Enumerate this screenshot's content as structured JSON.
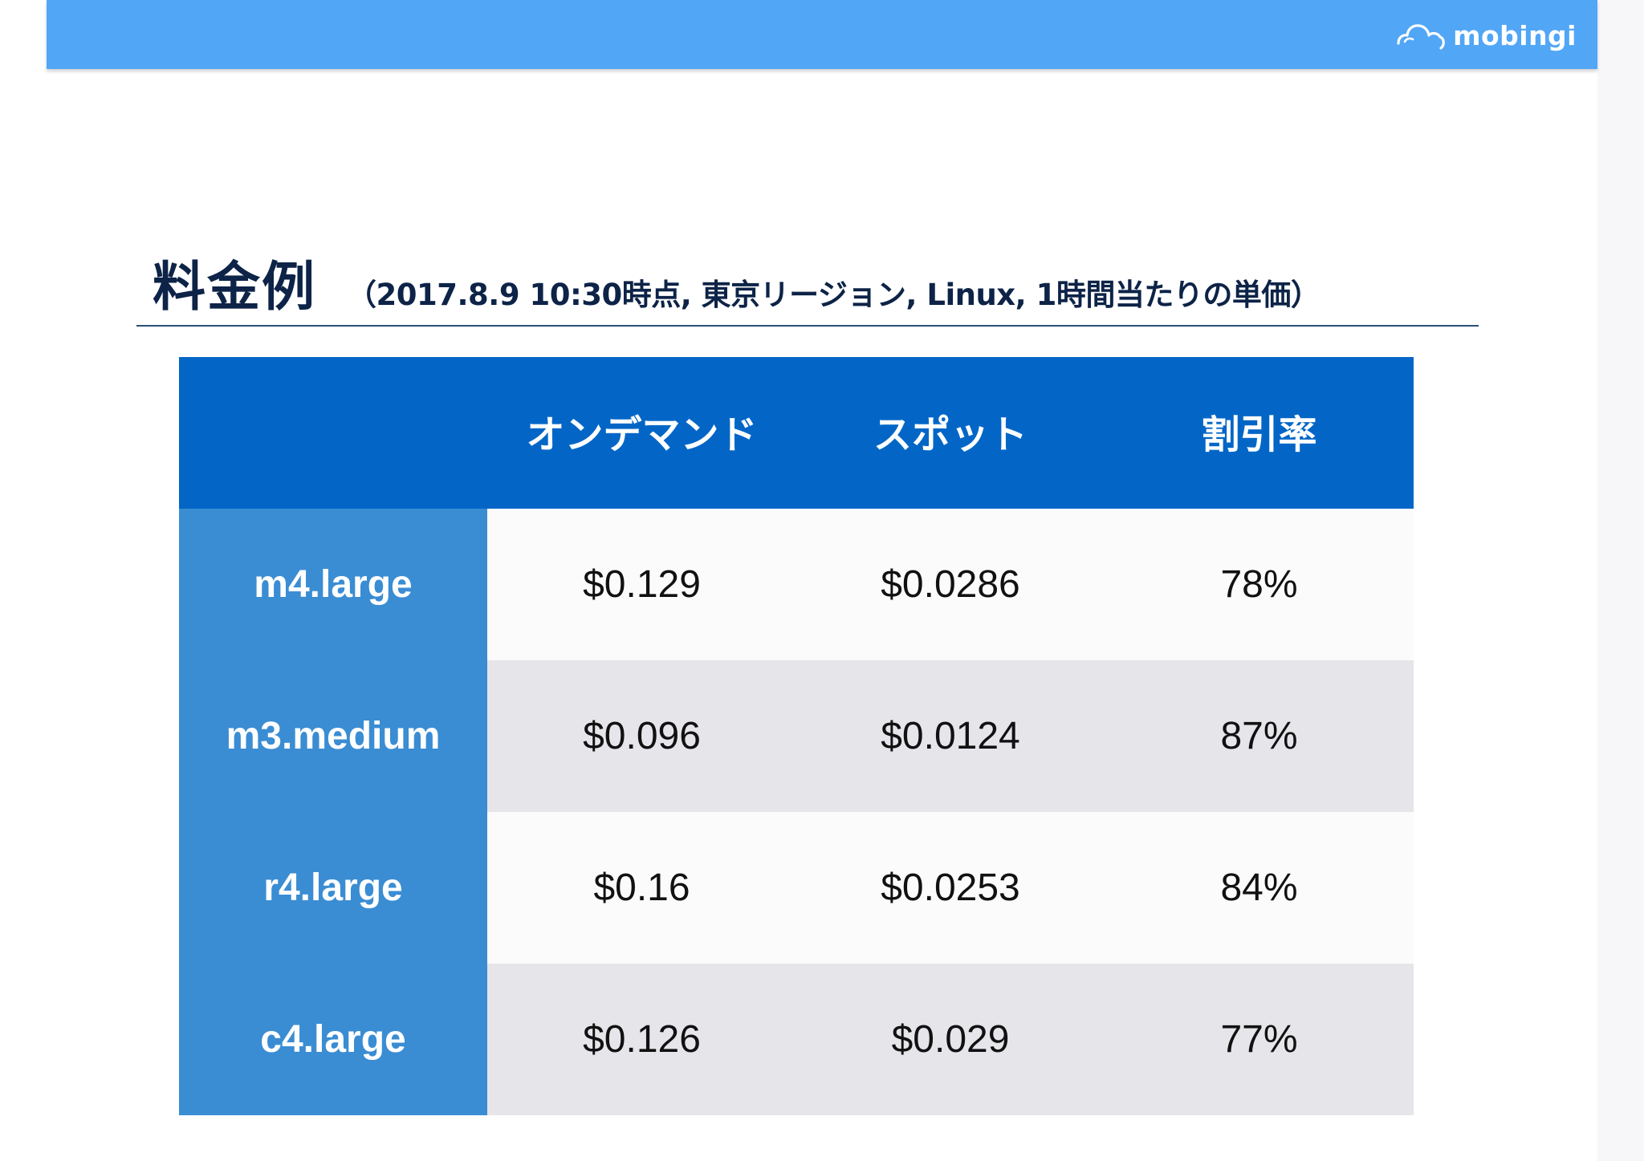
{
  "header": {
    "brand_name": "mobingi",
    "brand_icon": "cloud-icon",
    "bar_color": "#51a6f6"
  },
  "slide": {
    "title": "料金例",
    "subtitle": "（2017.8.9 10:30時点, 東京リージョン, Linux, 1時間当たりの単価）"
  },
  "table": {
    "header_color": "#0366c7",
    "rowhead_color": "#3a8dd3",
    "columns": [
      "",
      "オンデマンド",
      "スポット",
      "割引率"
    ],
    "rows": [
      {
        "instance": "m4.large",
        "on_demand": "$0.129",
        "spot": "$0.0286",
        "discount": "78%"
      },
      {
        "instance": "m3.medium",
        "on_demand": "$0.096",
        "spot": "$0.0124",
        "discount": "87%"
      },
      {
        "instance": "r4.large",
        "on_demand": "$0.16",
        "spot": "$0.0253",
        "discount": "84%"
      },
      {
        "instance": "c4.large",
        "on_demand": "$0.126",
        "spot": "$0.029",
        "discount": "77%"
      }
    ]
  }
}
